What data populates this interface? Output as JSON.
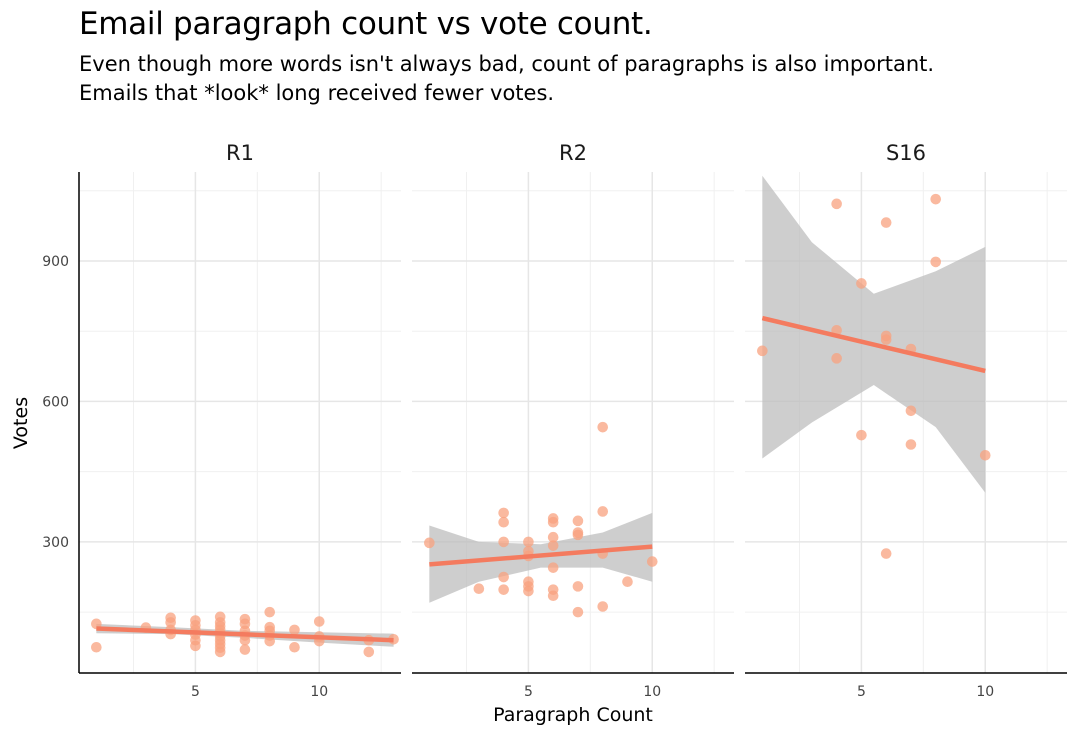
{
  "title": "Email paragraph count vs vote count.",
  "subtitle": "Even though more words isn't always bad, count of paragraphs is also important.\nEmails that *look* long received fewer votes.",
  "colors": {
    "point": "#F8A27F",
    "line": "#F47B5F",
    "band": "#BDBDBD",
    "grid": "#E6E6E6"
  },
  "chart_data": {
    "type": "scatter",
    "facets": [
      "R1",
      "R2",
      "S16"
    ],
    "xlabel": "Paragraph Count",
    "ylabel": "Votes",
    "xlim": [
      0.3,
      13.3
    ],
    "ylim": [
      20,
      1090
    ],
    "x_ticks": [
      5,
      10
    ],
    "y_ticks": [
      300,
      600,
      900
    ],
    "grid": true,
    "smooth": "linear fit with confidence band",
    "panels": [
      {
        "name": "R1",
        "points": [
          [
            1,
            125
          ],
          [
            1,
            75
          ],
          [
            3,
            117
          ],
          [
            4,
            138
          ],
          [
            4,
            128
          ],
          [
            4,
            112
          ],
          [
            4,
            103
          ],
          [
            5,
            132
          ],
          [
            5,
            122
          ],
          [
            5,
            112
          ],
          [
            5,
            102
          ],
          [
            5,
            90
          ],
          [
            5,
            78
          ],
          [
            6,
            140
          ],
          [
            6,
            128
          ],
          [
            6,
            120
          ],
          [
            6,
            112
          ],
          [
            6,
            105
          ],
          [
            6,
            98
          ],
          [
            6,
            90
          ],
          [
            6,
            82
          ],
          [
            6,
            74
          ],
          [
            6,
            65
          ],
          [
            7,
            135
          ],
          [
            7,
            125
          ],
          [
            7,
            110
          ],
          [
            7,
            100
          ],
          [
            7,
            90
          ],
          [
            7,
            70
          ],
          [
            8,
            150
          ],
          [
            8,
            118
          ],
          [
            8,
            110
          ],
          [
            8,
            100
          ],
          [
            8,
            88
          ],
          [
            9,
            112
          ],
          [
            9,
            75
          ],
          [
            10,
            130
          ],
          [
            10,
            98
          ],
          [
            10,
            88
          ],
          [
            12,
            90
          ],
          [
            12,
            65
          ],
          [
            13,
            92
          ]
        ],
        "fit": {
          "x": [
            1,
            13
          ],
          "y": [
            115,
            90
          ]
        },
        "band": {
          "x": [
            1,
            4,
            7,
            10,
            13
          ],
          "lower": [
            105,
            103,
            95,
            85,
            76
          ],
          "upper": [
            125,
            118,
            110,
            107,
            104
          ]
        }
      },
      {
        "name": "R2",
        "points": [
          [
            1,
            298
          ],
          [
            3,
            200
          ],
          [
            4,
            362
          ],
          [
            4,
            342
          ],
          [
            4,
            300
          ],
          [
            4,
            225
          ],
          [
            4,
            198
          ],
          [
            5,
            300
          ],
          [
            5,
            280
          ],
          [
            5,
            270
          ],
          [
            5,
            215
          ],
          [
            5,
            205
          ],
          [
            5,
            195
          ],
          [
            6,
            350
          ],
          [
            6,
            342
          ],
          [
            6,
            310
          ],
          [
            6,
            292
          ],
          [
            6,
            245
          ],
          [
            6,
            198
          ],
          [
            6,
            185
          ],
          [
            7,
            345
          ],
          [
            7,
            320
          ],
          [
            7,
            315
          ],
          [
            7,
            205
          ],
          [
            7,
            150
          ],
          [
            8,
            545
          ],
          [
            8,
            365
          ],
          [
            8,
            275
          ],
          [
            8,
            162
          ],
          [
            9,
            215
          ],
          [
            10,
            258
          ]
        ],
        "fit": {
          "x": [
            1,
            10
          ],
          "y": [
            252,
            290
          ]
        },
        "band": {
          "x": [
            1,
            3,
            5.5,
            8,
            10
          ],
          "lower": [
            170,
            215,
            245,
            245,
            215
          ],
          "upper": [
            335,
            300,
            295,
            320,
            362
          ]
        }
      },
      {
        "name": "S16",
        "points": [
          [
            1,
            708
          ],
          [
            4,
            1022
          ],
          [
            4,
            752
          ],
          [
            4,
            692
          ],
          [
            5,
            852
          ],
          [
            5,
            528
          ],
          [
            6,
            982
          ],
          [
            6,
            740
          ],
          [
            6,
            732
          ],
          [
            6,
            275
          ],
          [
            7,
            712
          ],
          [
            7,
            580
          ],
          [
            7,
            508
          ],
          [
            8,
            1032
          ],
          [
            8,
            898
          ],
          [
            10,
            485
          ]
        ],
        "fit": {
          "x": [
            1,
            10
          ],
          "y": [
            778,
            665
          ]
        },
        "band": {
          "x": [
            1,
            3,
            5.5,
            8,
            10
          ],
          "lower": [
            478,
            555,
            635,
            545,
            405
          ],
          "upper": [
            1082,
            940,
            830,
            878,
            930
          ]
        }
      }
    ]
  }
}
